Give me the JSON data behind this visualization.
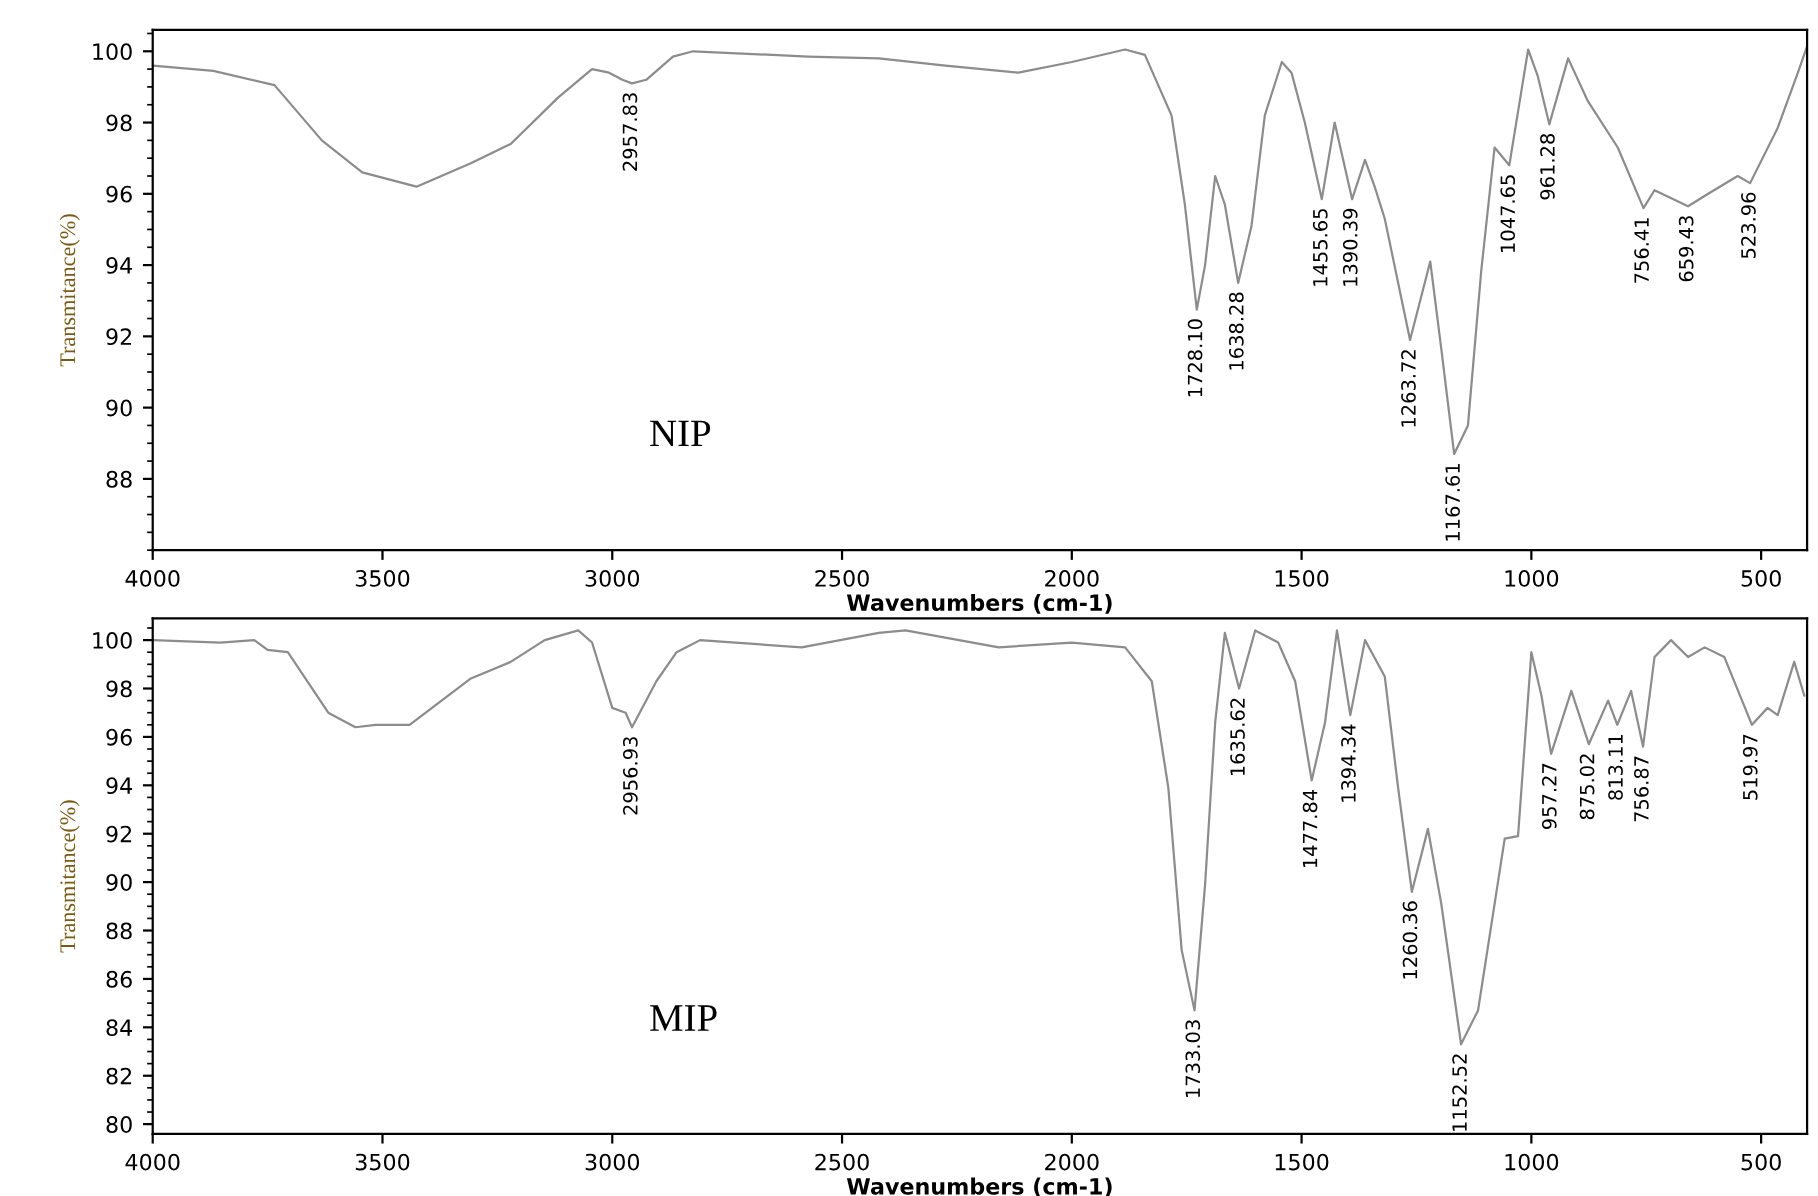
{
  "chart_data": [
    {
      "type": "line",
      "xlabel": "Wavenumbers (cm-1)",
      "ylabel": "Transmitance(%)",
      "xlim": [
        4000,
        400
      ],
      "xticks": [
        4000,
        3500,
        3000,
        2500,
        2000,
        1500,
        1000,
        500
      ],
      "ylim": [
        86,
        100.6
      ],
      "yticks": [
        88,
        90,
        92,
        94,
        96,
        98,
        100
      ],
      "grid": false,
      "legend": false,
      "marker": "none",
      "line_style": "solid",
      "series": [
        {
          "color": "#8c8c8c",
          "x": [
            4000,
            3868,
            3735,
            3632,
            3544,
            3426,
            3309,
            3221,
            3118,
            3044,
            3007,
            2978,
            2957,
            2926,
            2868,
            2824,
            2574,
            2420,
            2275,
            2116,
            2000,
            1884,
            1841,
            1783,
            1754,
            1728,
            1710,
            1688,
            1667,
            1638,
            1609,
            1580,
            1543,
            1522,
            1493,
            1456,
            1428,
            1390,
            1362,
            1341,
            1319,
            1264,
            1220,
            1196,
            1168,
            1138,
            1109,
            1080,
            1048,
            1007,
            986,
            961,
            920,
            877,
            812,
            756,
            732,
            659,
            609,
            551,
            524,
            464,
            420,
            401
          ],
          "values": [
            99.6,
            99.45,
            99.05,
            97.5,
            96.6,
            96.2,
            96.85,
            97.4,
            98.7,
            99.5,
            99.4,
            99.2,
            99.1,
            99.2,
            99.85,
            100,
            99.85,
            99.8,
            99.6,
            99.4,
            99.7,
            100.05,
            99.9,
            98.2,
            95.7,
            92.75,
            94.0,
            96.5,
            95.7,
            93.5,
            95.1,
            98.2,
            99.7,
            99.4,
            98.0,
            95.85,
            98.0,
            95.85,
            96.95,
            96.2,
            95.3,
            91.9,
            94.1,
            91.65,
            88.7,
            89.5,
            93.85,
            97.3,
            96.8,
            100.05,
            99.3,
            97.95,
            99.8,
            98.6,
            97.3,
            95.6,
            96.1,
            95.65,
            96.05,
            96.5,
            96.3,
            97.85,
            99.4,
            100.1
          ]
        }
      ],
      "annotations": [
        "NIP",
        {
          "text": "2957.83",
          "x": 2957.83,
          "y": 99.1
        },
        {
          "text": "1728.10",
          "x": 1728.1,
          "y": 92.75
        },
        {
          "text": "1638.28",
          "x": 1638.28,
          "y": 93.5
        },
        {
          "text": "1455.65",
          "x": 1455.65,
          "y": 95.85
        },
        {
          "text": "1390.39",
          "x": 1390.39,
          "y": 95.85
        },
        {
          "text": "1263.72",
          "x": 1263.72,
          "y": 91.9
        },
        {
          "text": "1167.61",
          "x": 1167.61,
          "y": 88.7
        },
        {
          "text": "1047.65",
          "x": 1047.65,
          "y": 96.8
        },
        {
          "text": "961.28",
          "x": 961.28,
          "y": 97.95
        },
        {
          "text": "756.41",
          "x": 756.41,
          "y": 95.6
        },
        {
          "text": "659.43",
          "x": 659.43,
          "y": 95.65
        },
        {
          "text": "523.96",
          "x": 523.96,
          "y": 96.3
        }
      ]
    },
    {
      "type": "line",
      "xlabel": "Wavenumbers (cm-1)",
      "ylabel": "Transmitance(%)",
      "xlim": [
        4000,
        400
      ],
      "xticks": [
        4000,
        3500,
        3000,
        2500,
        2000,
        1500,
        1000,
        500
      ],
      "ylim": [
        79.6,
        100.9
      ],
      "yticks": [
        80,
        82,
        84,
        86,
        88,
        90,
        92,
        94,
        96,
        98,
        100
      ],
      "grid": false,
      "legend": false,
      "marker": "none",
      "line_style": "solid",
      "series": [
        {
          "color": "#8c8c8c",
          "x": [
            4000,
            3853,
            3779,
            3750,
            3706,
            3618,
            3559,
            3515,
            3441,
            3309,
            3221,
            3147,
            3074,
            3044,
            3000,
            2971,
            2957,
            2904,
            2860,
            2809,
            2588,
            2420,
            2362,
            2159,
            2000,
            1884,
            1826,
            1790,
            1761,
            1733,
            1710,
            1688,
            1667,
            1636,
            1601,
            1551,
            1514,
            1478,
            1449,
            1423,
            1394,
            1362,
            1319,
            1290,
            1260,
            1225,
            1196,
            1153,
            1116,
            1080,
            1058,
            1029,
            1000,
            978,
            957,
            913,
            875,
            833,
            813,
            783,
            757,
            732,
            696,
            659,
            623,
            580,
            520,
            486,
            464,
            428,
            406
          ],
          "values": [
            100,
            99.9,
            100,
            99.6,
            99.5,
            97.0,
            96.4,
            96.5,
            96.5,
            98.4,
            99.1,
            100,
            100.4,
            99.9,
            97.2,
            97.0,
            96.4,
            98.3,
            99.5,
            100,
            99.7,
            100.3,
            100.4,
            99.7,
            99.9,
            99.7,
            98.3,
            93.9,
            87.2,
            84.7,
            89.9,
            96.6,
            100.3,
            98.0,
            100.4,
            99.9,
            98.3,
            94.2,
            96.6,
            100.4,
            96.9,
            100,
            98.5,
            93.9,
            89.6,
            92.2,
            89.1,
            83.3,
            84.7,
            89.1,
            91.8,
            91.9,
            99.5,
            97.7,
            95.3,
            97.9,
            95.7,
            97.5,
            96.5,
            97.9,
            95.6,
            99.3,
            100,
            99.3,
            99.7,
            99.3,
            96.5,
            97.2,
            96.9,
            99.1,
            97.7
          ]
        }
      ],
      "annotations": [
        "MIP",
        {
          "text": "2956.93",
          "x": 2956.93,
          "y": 96.4
        },
        {
          "text": "1733.03",
          "x": 1733.03,
          "y": 84.7
        },
        {
          "text": "1635.62",
          "x": 1635.62,
          "y": 98.0
        },
        {
          "text": "1477.84",
          "x": 1477.84,
          "y": 94.2
        },
        {
          "text": "1394.34",
          "x": 1394.34,
          "y": 96.9
        },
        {
          "text": "1260.36",
          "x": 1260.36,
          "y": 89.6
        },
        {
          "text": "1152.52",
          "x": 1152.52,
          "y": 83.3
        },
        {
          "text": "957.27",
          "x": 957.27,
          "y": 95.3
        },
        {
          "text": "875.02",
          "x": 875.02,
          "y": 95.7
        },
        {
          "text": "813.11",
          "x": 813.11,
          "y": 96.5
        },
        {
          "text": "756.87",
          "x": 756.87,
          "y": 95.6
        },
        {
          "text": "519.97",
          "x": 519.97,
          "y": 96.5
        }
      ]
    }
  ]
}
